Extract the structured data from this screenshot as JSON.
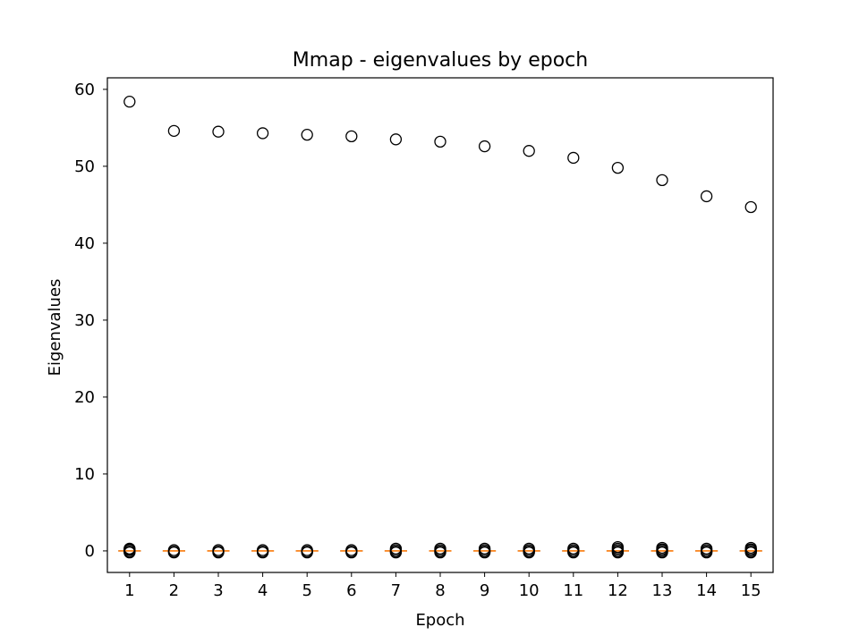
{
  "chart_data": {
    "type": "box",
    "title": "Mmap - eigenvalues by epoch",
    "xlabel": "Epoch",
    "ylabel": "Eigenvalues",
    "categories": [
      "1",
      "2",
      "3",
      "4",
      "5",
      "6",
      "7",
      "8",
      "9",
      "10",
      "11",
      "12",
      "13",
      "14",
      "15"
    ],
    "yticks": [
      0,
      10,
      20,
      30,
      40,
      50,
      60
    ],
    "ylim": [
      -2.8,
      61.5
    ],
    "medians": [
      0,
      0,
      0,
      0,
      0,
      0,
      0,
      0,
      0,
      0,
      0,
      0,
      0,
      0,
      0
    ],
    "outliers": [
      [
        58.4,
        0.3,
        0.2,
        0.1,
        -0.1,
        -0.2
      ],
      [
        54.6,
        0.1,
        -0.1,
        -0.2
      ],
      [
        54.5,
        0.1,
        -0.1,
        -0.2
      ],
      [
        54.3,
        0.1,
        -0.1,
        -0.2
      ],
      [
        54.1,
        0.1,
        -0.1,
        -0.2
      ],
      [
        53.9,
        0.1,
        -0.1,
        -0.2
      ],
      [
        53.5,
        0.3,
        0.1,
        -0.1,
        -0.2
      ],
      [
        53.2,
        0.3,
        0.1,
        -0.1,
        -0.2
      ],
      [
        52.6,
        0.3,
        0.1,
        -0.1,
        -0.2
      ],
      [
        52.0,
        0.3,
        0.1,
        -0.1,
        -0.2
      ],
      [
        51.1,
        0.3,
        0.1,
        -0.1,
        -0.2
      ],
      [
        49.8,
        0.5,
        0.3,
        0.1,
        -0.1,
        -0.2
      ],
      [
        48.2,
        0.4,
        0.2,
        0.1,
        -0.1,
        -0.2
      ],
      [
        46.1,
        0.3,
        0.1,
        -0.1,
        -0.2
      ],
      [
        44.7,
        0.4,
        0.2,
        0.1,
        -0.1,
        -0.2
      ]
    ],
    "median_color": "#ff7f0e",
    "marker_edge_color": "#000000",
    "legend": null,
    "grid": false
  }
}
